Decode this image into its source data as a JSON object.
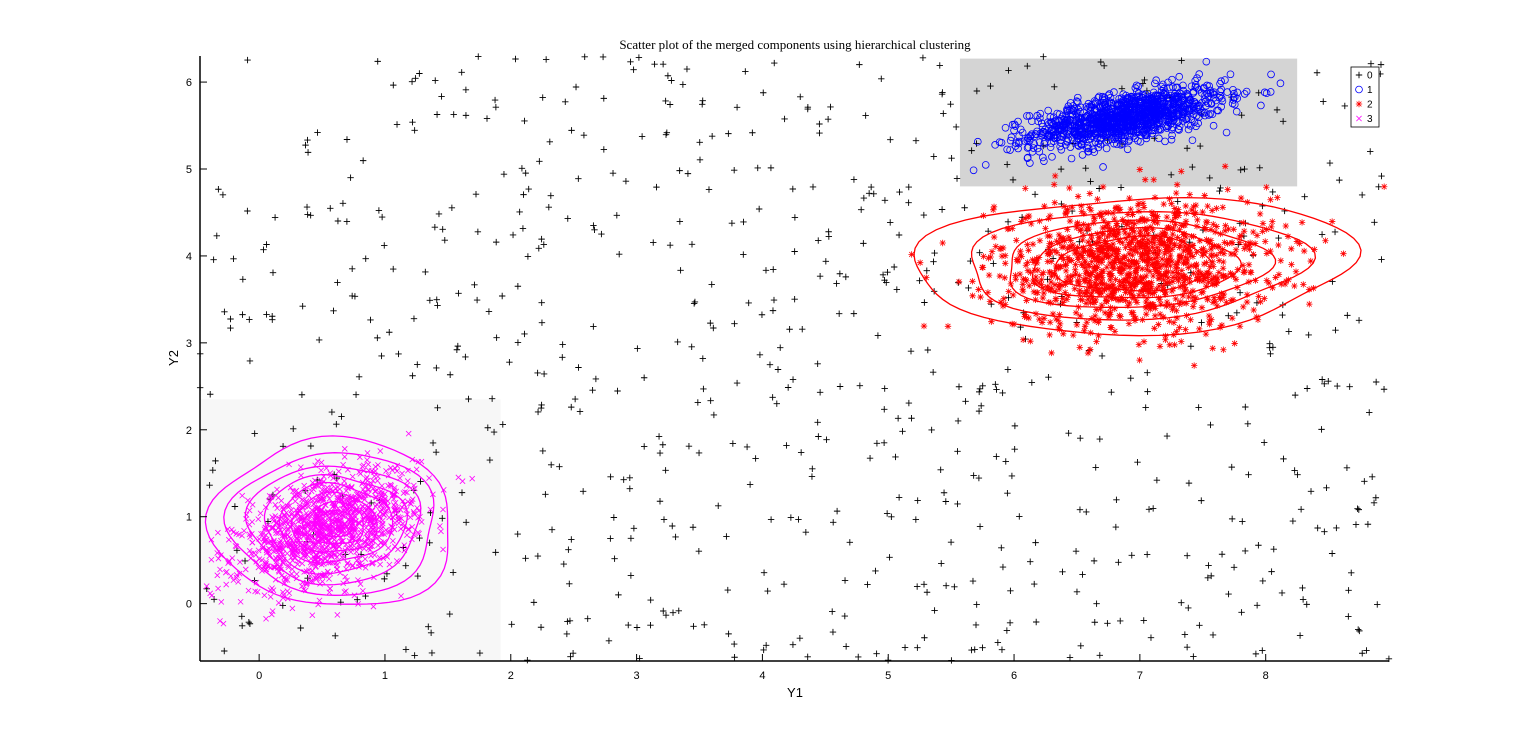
{
  "chart_data": {
    "type": "scatter",
    "title": "Scatter plot of the merged components using hierarchical clustering",
    "xlabel": "Y1",
    "ylabel": "Y2",
    "xlim": [
      -0.47,
      8.98
    ],
    "ylim": [
      -0.66,
      6.3
    ],
    "xticks": [
      0,
      1,
      2,
      3,
      4,
      5,
      6,
      7,
      8
    ],
    "yticks": [
      0,
      1,
      2,
      3,
      4,
      5,
      6
    ],
    "grid": false,
    "legend": {
      "placement": "top-right",
      "entries": [
        "0",
        "1",
        "2",
        "3"
      ]
    },
    "shaded_regions": [
      {
        "x": [
          -0.47,
          1.92
        ],
        "y": [
          -0.66,
          2.35
        ],
        "color": "#f7f7f7"
      },
      {
        "x": [
          5.57,
          8.25
        ],
        "y": [
          4.8,
          6.27
        ],
        "color": "#d4d4d4"
      }
    ],
    "series": [
      {
        "name": "0",
        "marker": "plus",
        "color": "#000000",
        "distribution": "uniform background noise",
        "count": 800,
        "x_range": [
          -0.47,
          8.98
        ],
        "y_range": [
          -0.66,
          6.3
        ]
      },
      {
        "name": "1",
        "marker": "circle",
        "color": "#0000ff",
        "count": 1200,
        "center": [
          6.9,
          5.6
        ],
        "spread": [
          0.38,
          0.17
        ],
        "correlation": 0.6
      },
      {
        "name": "2",
        "marker": "asterisk",
        "color": "#ff0000",
        "count": 1200,
        "center": [
          6.95,
          3.9
        ],
        "spread": [
          0.55,
          0.38
        ],
        "correlation": 0.05
      },
      {
        "name": "3",
        "marker": "x",
        "color": "#ff00ff",
        "count": 1200,
        "center": [
          0.55,
          0.85
        ],
        "spread": [
          0.35,
          0.33
        ],
        "correlation": 0.45
      }
    ],
    "contours": [
      {
        "series": "2",
        "color": "#ff0000",
        "center": [
          6.95,
          3.9
        ],
        "radii": [
          [
            1.75,
            0.78
          ],
          [
            1.35,
            0.62
          ],
          [
            1.05,
            0.5
          ],
          [
            0.82,
            0.4
          ],
          [
            0.62,
            0.31
          ]
        ],
        "rotation_deg": 3
      },
      {
        "series": "3",
        "color": "#ff00ff",
        "center": [
          0.6,
          0.92
        ],
        "radii": [
          [
            0.95,
            0.98
          ],
          [
            0.82,
            0.82
          ],
          [
            0.68,
            0.68
          ],
          [
            0.56,
            0.56
          ],
          [
            0.45,
            0.45
          ],
          [
            0.34,
            0.34
          ],
          [
            0.24,
            0.24
          ],
          [
            0.15,
            0.15
          ]
        ],
        "rotation_deg": 40
      }
    ]
  }
}
